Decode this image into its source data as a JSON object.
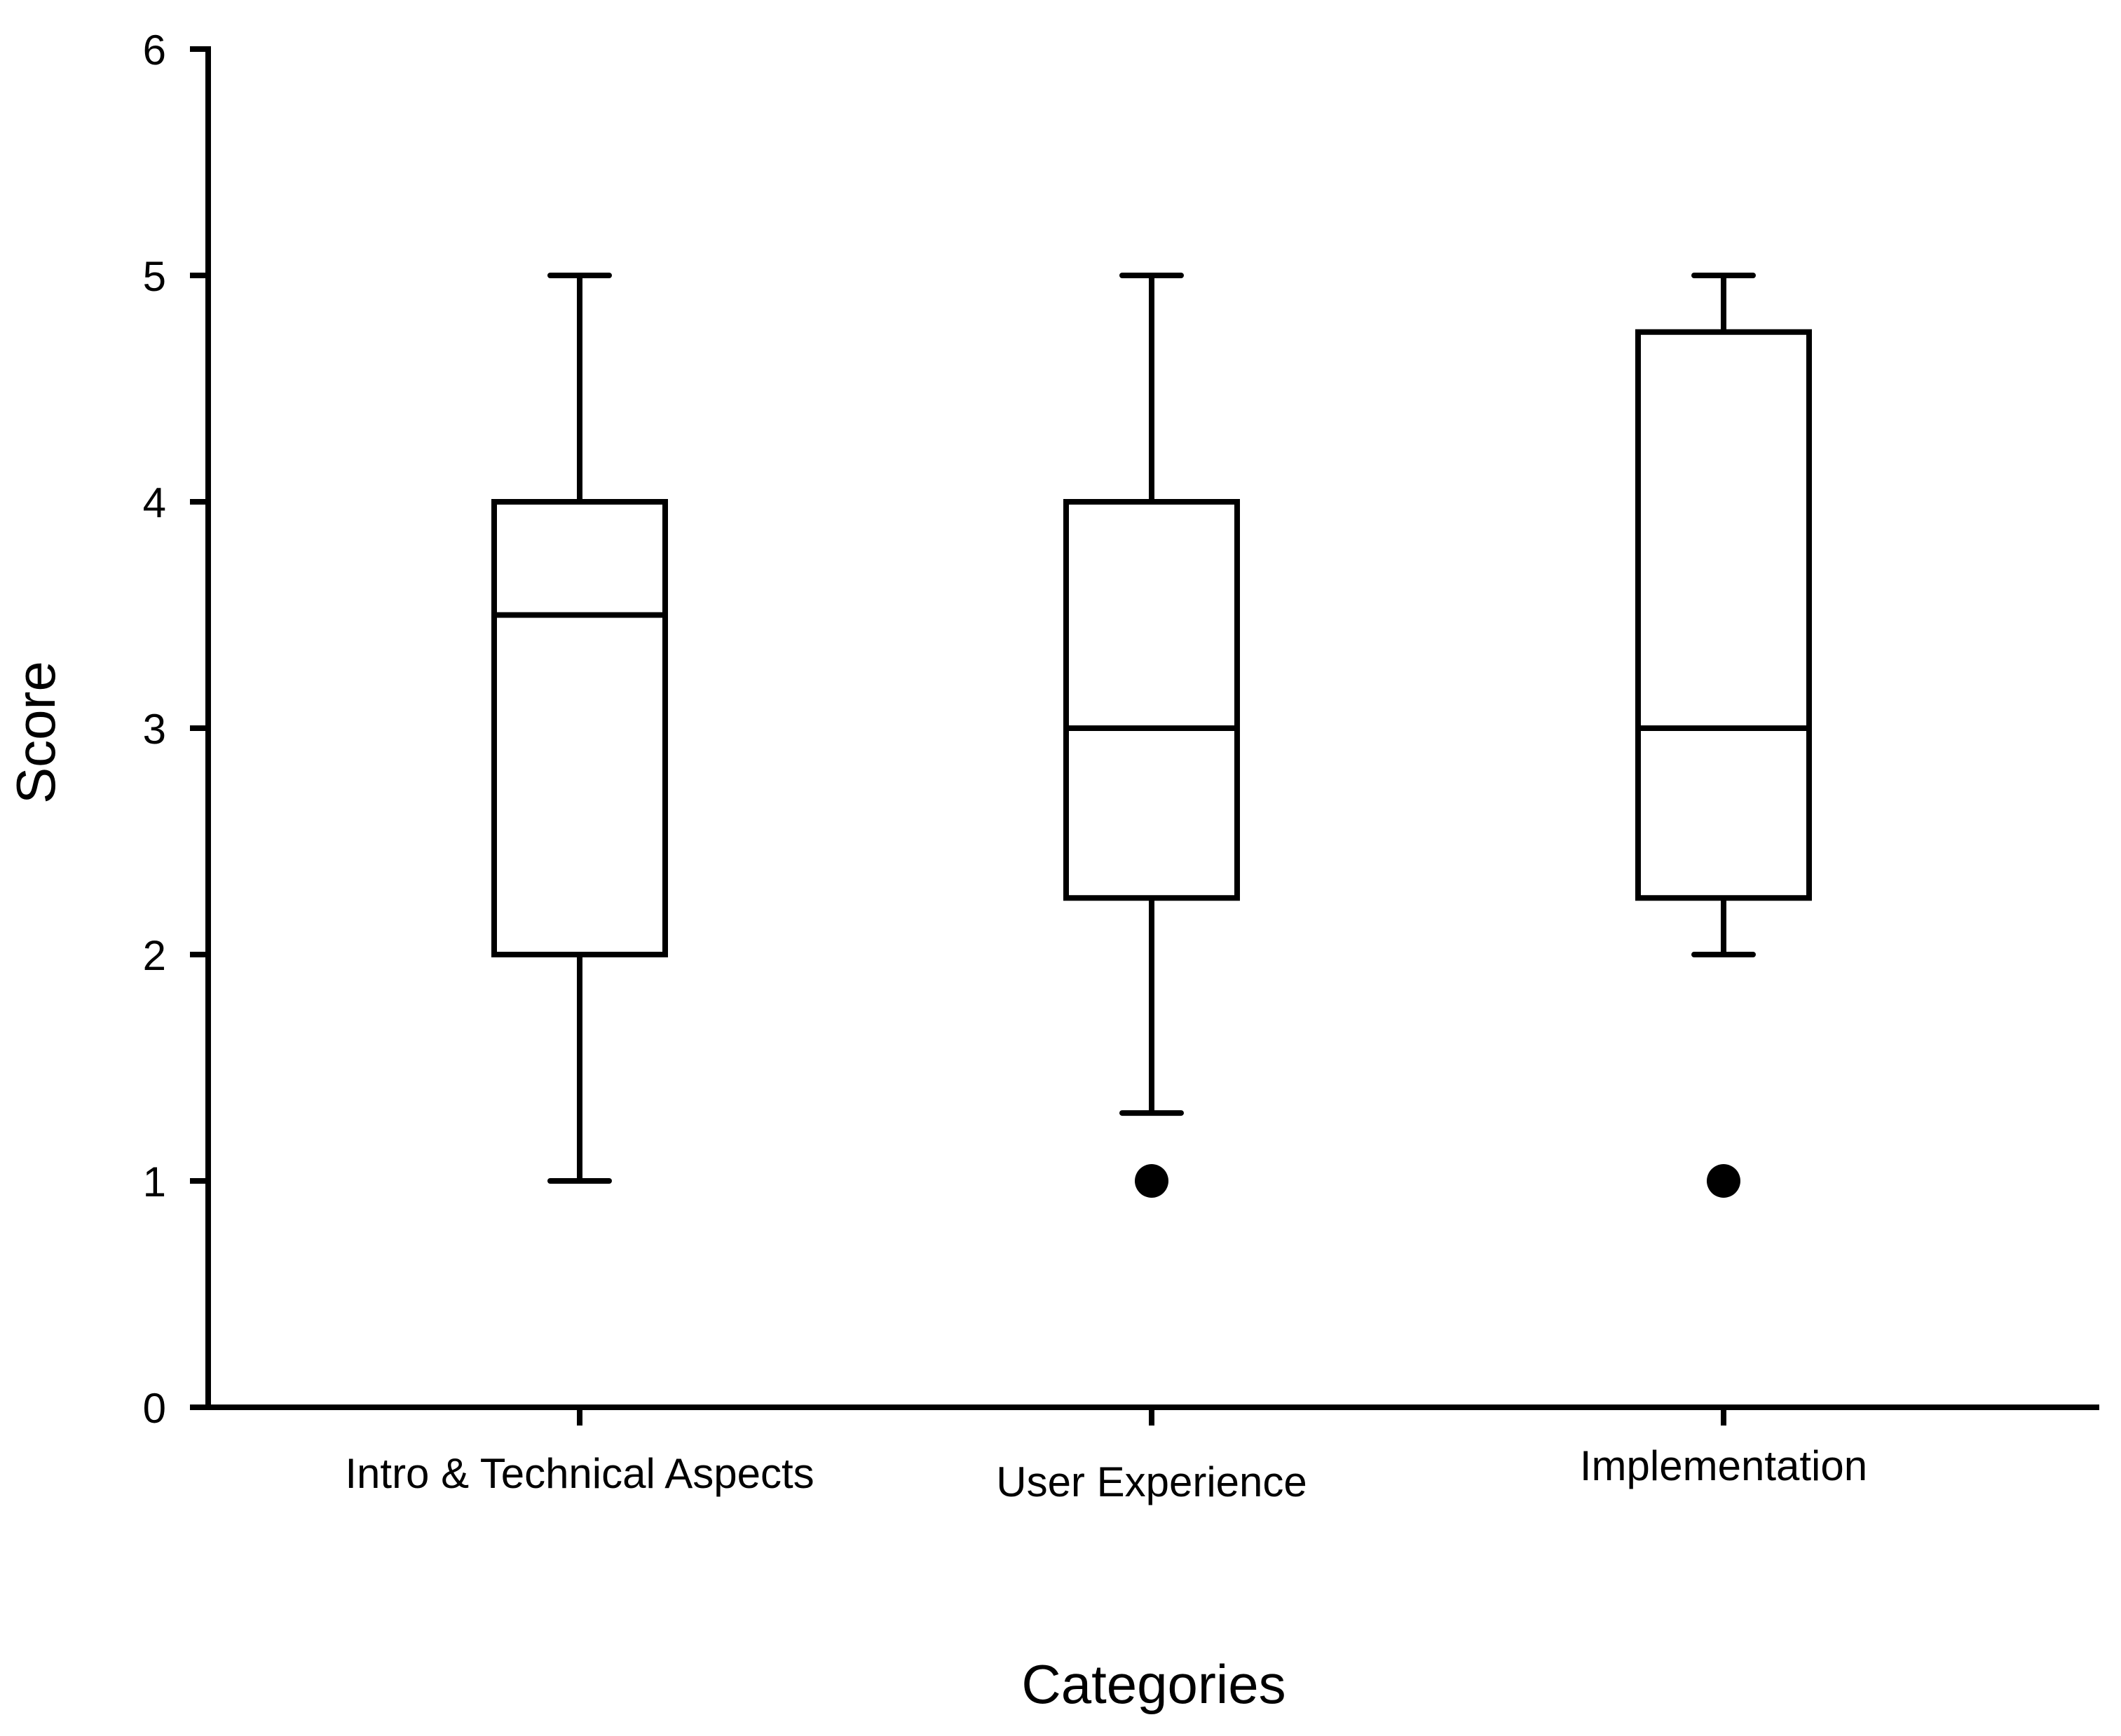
{
  "chart_data": {
    "type": "box",
    "title": "",
    "xlabel": "Categories",
    "ylabel": "Score",
    "ylim": [
      0,
      6
    ],
    "yticks": [
      "0",
      "1",
      "2",
      "3",
      "4",
      "5",
      "6"
    ],
    "grid": false,
    "legend": "none",
    "categories": [
      "Intro & Technical Aspects",
      "User Experience",
      "Implementation"
    ],
    "boxes": [
      {
        "category": "Intro & Technical Aspects",
        "whisker_low": 1,
        "q1": 2,
        "median": 3.5,
        "q3": 4,
        "whisker_high": 5,
        "outliers": []
      },
      {
        "category": "User Experience",
        "whisker_low": 1.3,
        "q1": 2.25,
        "median": 3,
        "q3": 4,
        "whisker_high": 5,
        "outliers": [
          1
        ]
      },
      {
        "category": "Implementation",
        "whisker_low": 2,
        "q1": 2.25,
        "median": 3,
        "q3": 4.75,
        "whisker_high": 5,
        "outliers": [
          1
        ]
      }
    ]
  },
  "colors": {
    "line": "#000000",
    "box_fill": "#ffffff",
    "outlier": "#000000",
    "background": "#ffffff"
  }
}
